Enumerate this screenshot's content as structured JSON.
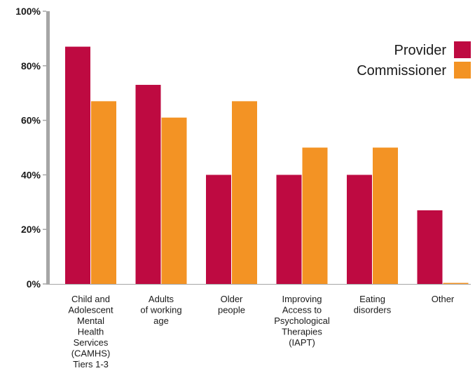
{
  "chart_data": {
    "type": "bar",
    "title": "",
    "xlabel": "",
    "ylabel": "",
    "ylim": [
      0,
      100
    ],
    "y_ticks": [
      "0%",
      "20%",
      "40%",
      "60%",
      "80%",
      "100%"
    ],
    "y_tick_values": [
      0,
      20,
      40,
      60,
      80,
      100
    ],
    "grid": false,
    "legend_position": "top-right",
    "categories": [
      [
        "Child and",
        "Adolescent",
        "Mental",
        "Health",
        "Services",
        "(CAMHS)",
        "Tiers 1-3"
      ],
      [
        "Adults",
        "of working",
        "age"
      ],
      [
        "Older",
        "people"
      ],
      [
        "Improving",
        "Access to",
        "Psychological",
        "Therapies",
        "(IAPT)"
      ],
      [
        "Eating",
        "disorders"
      ],
      [
        "Other"
      ]
    ],
    "series": [
      {
        "name": "Provider",
        "color": "#be0a41",
        "values": [
          87,
          73,
          40,
          40,
          40,
          27
        ]
      },
      {
        "name": "Commissioner",
        "color": "#f39324",
        "values": [
          67,
          61,
          67,
          50,
          50,
          0
        ]
      }
    ]
  },
  "colors": {
    "axis": "#a6a6a6",
    "text": "#1a1a1a"
  }
}
